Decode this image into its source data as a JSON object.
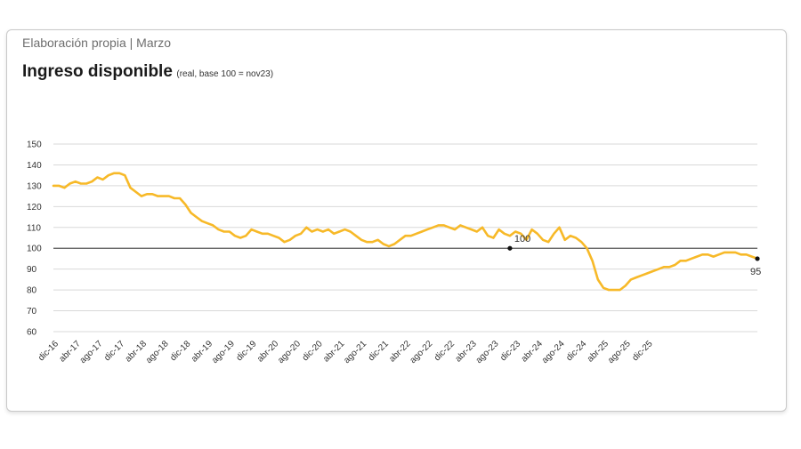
{
  "source": "Elaboración propia | Marzo",
  "chart_data": {
    "type": "line",
    "title": "Ingreso disponible",
    "subtitle": "(real, base 100 = nov23)",
    "ylim": [
      60,
      150
    ],
    "y_ticks": [
      60,
      70,
      80,
      90,
      100,
      110,
      120,
      130,
      140,
      150
    ],
    "reference_line": 100,
    "grid": true,
    "line_color": "#f7b928",
    "x_tick_labels": [
      "dic-16",
      "abr-17",
      "ago-17",
      "dic-17",
      "abr-18",
      "ago-18",
      "dic-18",
      "abr-19",
      "ago-19",
      "dic-19",
      "abr-20",
      "ago-20",
      "dic-20",
      "abr-21",
      "ago-21",
      "dic-21",
      "abr-22",
      "ago-22",
      "dic-22",
      "abr-23",
      "ago-23",
      "dic-23",
      "abr-24",
      "ago-24",
      "dic-24",
      "abr-25",
      "ago-25",
      "dic-25"
    ],
    "annotations": [
      {
        "x": "nov-23",
        "y": 100,
        "label": "100"
      },
      {
        "x": "feb-26",
        "y": 95,
        "label": "95"
      }
    ],
    "series": [
      {
        "values": [
          130,
          130,
          129,
          131,
          132,
          131,
          131,
          132,
          134,
          133,
          135,
          136,
          136,
          135,
          129,
          127,
          125,
          126,
          126,
          125,
          125,
          125,
          124,
          124,
          121,
          117,
          115,
          113,
          112,
          111,
          109,
          108,
          108,
          106,
          105,
          106,
          109,
          108,
          107,
          107,
          106,
          105,
          103,
          104,
          106,
          107,
          110,
          108,
          109,
          108,
          109,
          107,
          108,
          109,
          108,
          106,
          104,
          103,
          103,
          104,
          102,
          101,
          102,
          104,
          106,
          106,
          107,
          108,
          109,
          110,
          111,
          111,
          110,
          109,
          111,
          110,
          109,
          108,
          110,
          106,
          105,
          109,
          107,
          106,
          108,
          107,
          104,
          109,
          107,
          104,
          103,
          107,
          110,
          104,
          106,
          105,
          103,
          100,
          94,
          85,
          81,
          80,
          80,
          80,
          82,
          85,
          86,
          87,
          88,
          89,
          90,
          91,
          91,
          92,
          94,
          94,
          95,
          96,
          97,
          97,
          96,
          97,
          98,
          98,
          98,
          97,
          97,
          96,
          95
        ]
      }
    ]
  }
}
